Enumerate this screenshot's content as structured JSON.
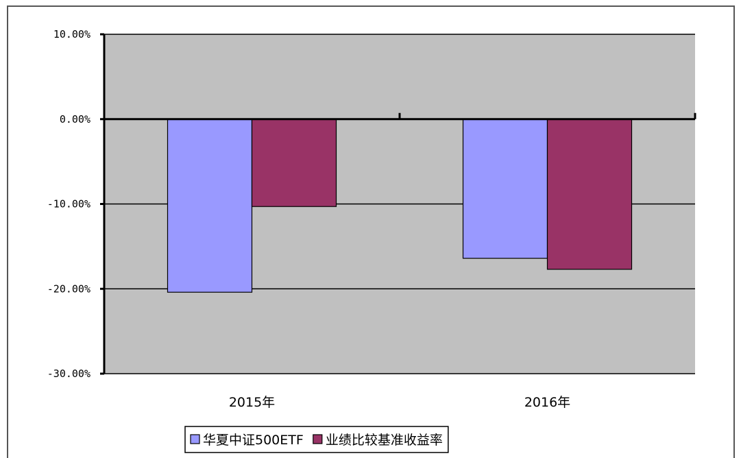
{
  "chart_data": {
    "type": "bar",
    "title": "",
    "xlabel": "",
    "ylabel": "",
    "categories": [
      "2015年",
      "2016年"
    ],
    "series": [
      {
        "name": "华夏中证500ETF",
        "values": [
          -20.4,
          -16.4
        ],
        "color": "#9999ff"
      },
      {
        "name": "业绩比较基准收益率",
        "values": [
          -10.3,
          -17.7
        ],
        "color": "#993366"
      }
    ],
    "ylim": [
      -30,
      10
    ],
    "yticks": [
      10,
      0,
      -10,
      -20,
      -30
    ],
    "ytick_labels": [
      "10.00%",
      "0.00%",
      "-10.00%",
      "-20.00%",
      "-30.00%"
    ],
    "grid": true,
    "plot_background": "#c0c0c0",
    "legend_position": "bottom"
  }
}
